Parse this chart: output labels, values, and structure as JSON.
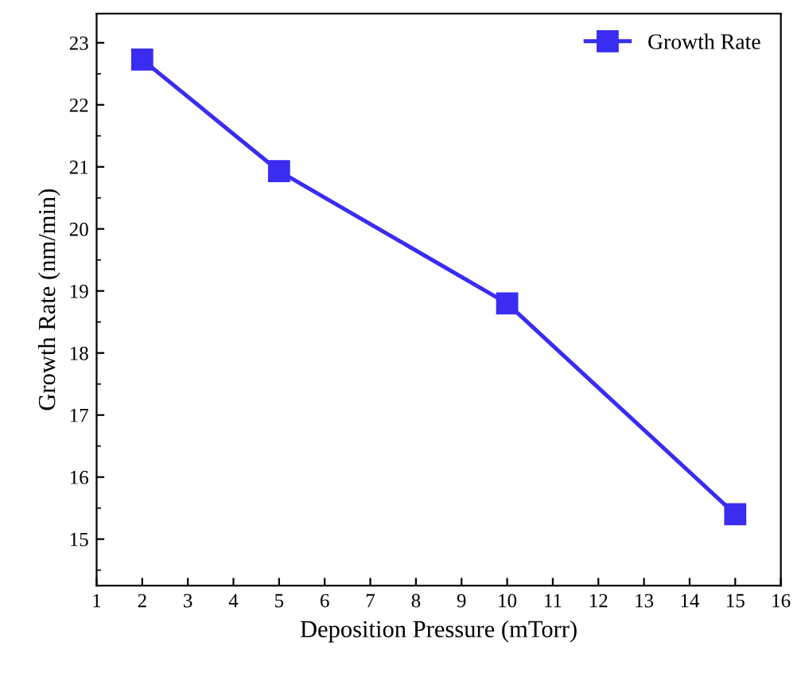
{
  "chart_data": {
    "type": "line",
    "xlabel": "Deposition Pressure (mTorr)",
    "ylabel": "Growth Rate (nm/min)",
    "x": [
      2,
      5,
      10,
      15
    ],
    "series": [
      {
        "name": "Growth Rate",
        "color": "#3a2cf0",
        "values": [
          22.73,
          20.93,
          18.8,
          15.4
        ]
      }
    ],
    "xlim": [
      1,
      16
    ],
    "xticks": [
      1,
      2,
      3,
      4,
      5,
      6,
      7,
      8,
      9,
      10,
      11,
      12,
      13,
      14,
      15,
      16
    ],
    "ylim": [
      14.25,
      23.47
    ],
    "yticks": [
      15,
      16,
      17,
      18,
      19,
      20,
      21,
      22,
      23
    ],
    "marker": "square",
    "line_style": "solid",
    "legend": "top right",
    "grid": false
  }
}
